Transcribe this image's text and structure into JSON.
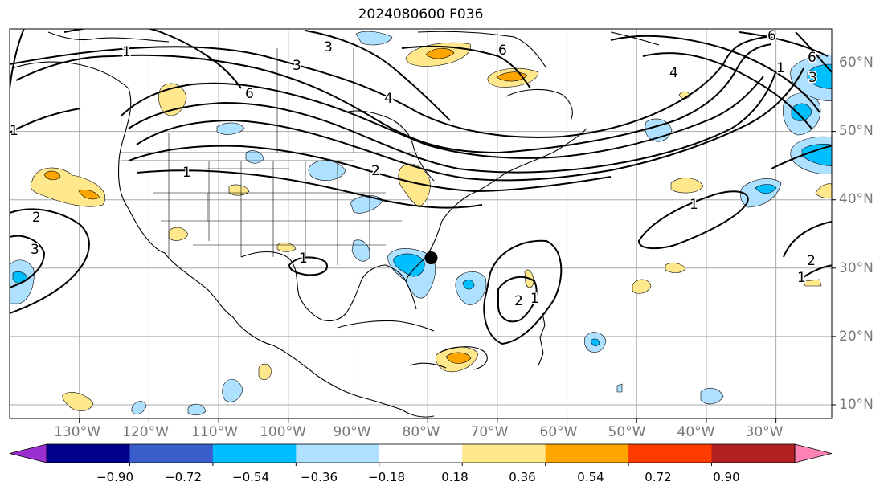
{
  "title": "2024080600 F036",
  "map": {
    "projection": "cylindrical",
    "lon_range": [
      -140,
      -22
    ],
    "lat_range": [
      8,
      65
    ],
    "grid": true,
    "lon_ticks": [
      "130°W",
      "120°W",
      "110°W",
      "100°W",
      "90°W",
      "80°W",
      "70°W",
      "60°W",
      "50°W",
      "40°W",
      "30°W"
    ],
    "lat_ticks": [
      "60°N",
      "50°N",
      "40°N",
      "30°N",
      "20°N",
      "10°N"
    ],
    "contour_labels": [
      "1",
      "3",
      "6",
      "4",
      "3",
      "6",
      "2",
      "1",
      "4",
      "1",
      "2",
      "3",
      "1",
      "2",
      "1",
      "2",
      "1",
      "1",
      "6",
      "3",
      "6",
      "1"
    ],
    "storm_marker": {
      "lon": -79.5,
      "lat": 31.5,
      "shape": "filled-circle",
      "color": "#000000"
    }
  },
  "colorbar": {
    "orientation": "horizontal",
    "extend": "both",
    "tick_labels": [
      "−0.90",
      "−0.72",
      "−0.54",
      "−0.36",
      "−0.18",
      "0.18",
      "0.36",
      "0.54",
      "0.72",
      "0.90"
    ],
    "colors": [
      "#9b30d0",
      "#00008b",
      "#3a5fcd",
      "#00bfff",
      "#aee0ff",
      "#ffffff",
      "#ffe88c",
      "#ffa500",
      "#ff3c00",
      "#b22222",
      "#ff82b4"
    ]
  }
}
